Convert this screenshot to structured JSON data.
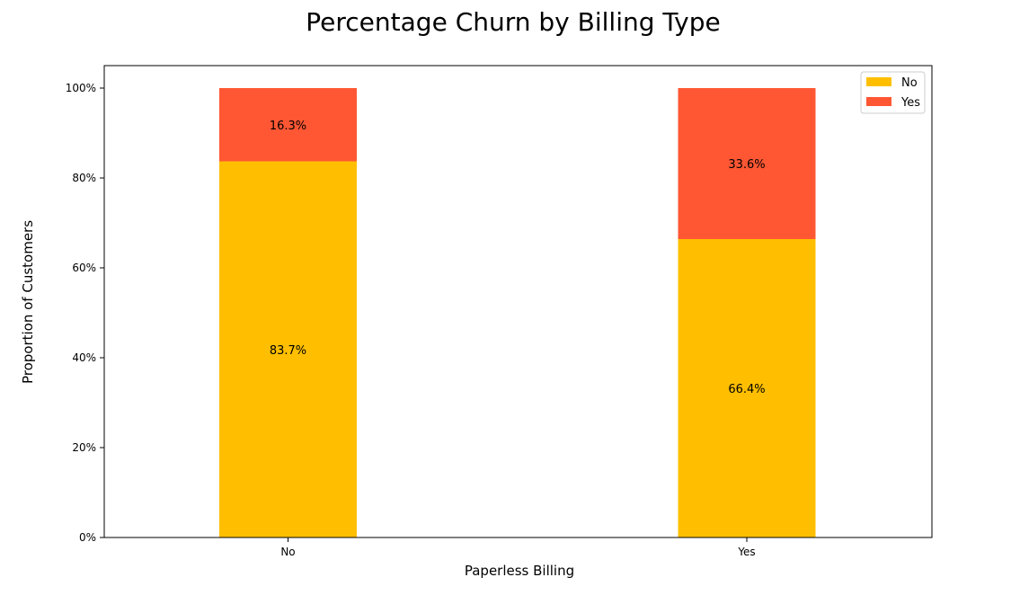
{
  "chart_data": {
    "type": "bar",
    "stacked": true,
    "title": "Percentage Churn by Billing Type",
    "xlabel": "Paperless Billing",
    "ylabel": "Proportion of Customers",
    "categories": [
      "No",
      "Yes"
    ],
    "ylim": [
      0,
      1.05
    ],
    "yticks": [
      0,
      0.2,
      0.4,
      0.6,
      0.8,
      1.0
    ],
    "ytick_labels": [
      "0%",
      "20%",
      "40%",
      "60%",
      "80%",
      "100%"
    ],
    "grid": false,
    "legend_position": "top-right",
    "series": [
      {
        "name": "No",
        "color": "#FFBF00",
        "values": [
          0.837,
          0.664
        ],
        "labels": [
          "83.7%",
          "66.4%"
        ]
      },
      {
        "name": "Yes",
        "color": "#FF5733",
        "values": [
          0.163,
          0.336
        ],
        "labels": [
          "16.3%",
          "33.6%"
        ]
      }
    ]
  }
}
